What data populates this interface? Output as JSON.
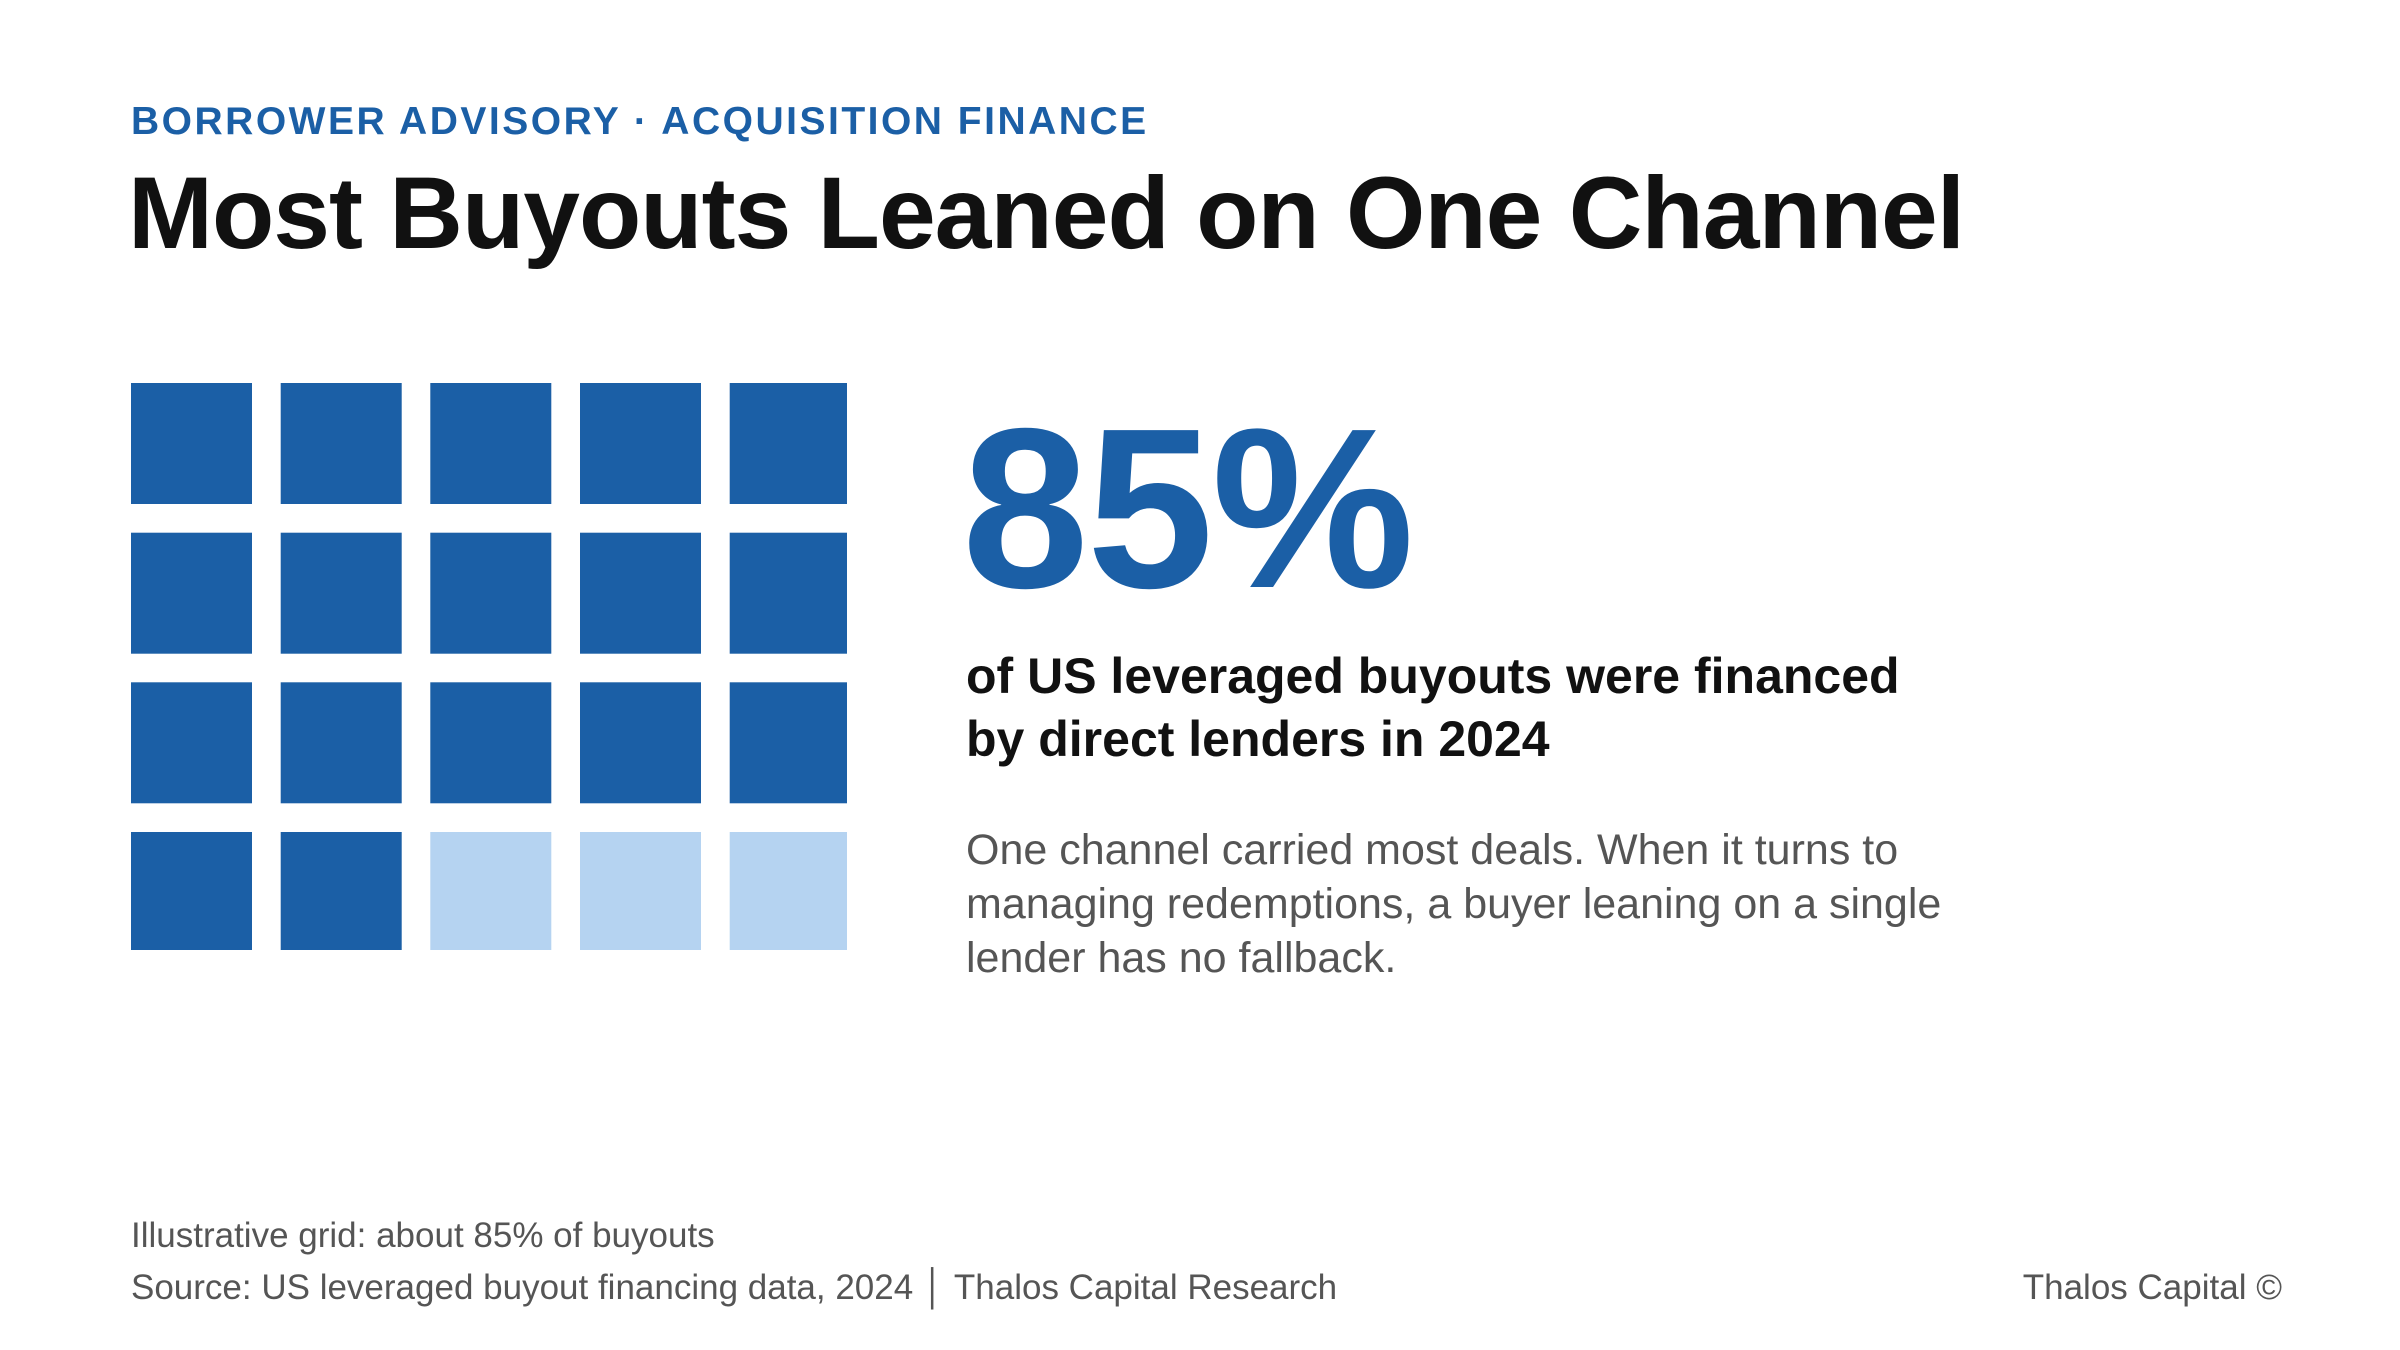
{
  "header": {
    "eyebrow": "BORROWER ADVISORY · ACQUISITION FINANCE",
    "title": "Most Buyouts Leaned on One Channel"
  },
  "stat": {
    "value": "85%",
    "headline_line1": "of US leveraged buyouts were financed",
    "headline_line2": "by direct lenders in 2024",
    "body_line1": "One channel carried most deals. When it turns to",
    "body_line2": "managing redemptions, a buyer leaning on a single",
    "body_line3": "lender has no fallback."
  },
  "footer": {
    "note": "Illustrative grid: about 85% of buyouts",
    "source": "Source: US leveraged buyout financing data, 2024 │ Thalos Capital Research",
    "brand": "Thalos Capital ©"
  },
  "colors": {
    "accent": "#1b5fa6",
    "filled": "#1b5fa6",
    "empty": "#b5d3f1",
    "title": "#111111",
    "muted": "#555555"
  },
  "chart_data": {
    "type": "waffle",
    "rows": 4,
    "columns": 5,
    "total_cells": 20,
    "filled_cells": 17,
    "share_percent": 85
  }
}
